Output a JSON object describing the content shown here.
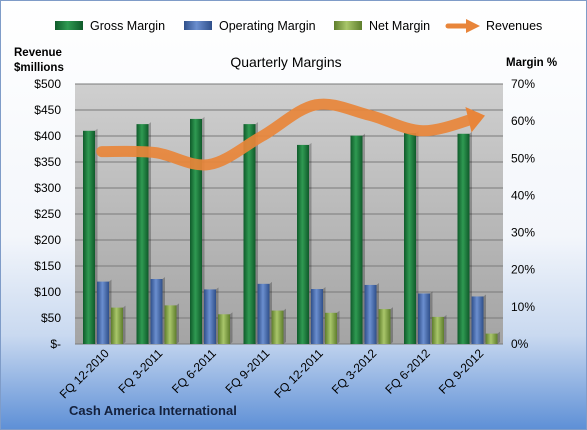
{
  "colors": {
    "gross_margin": "#1e7a3c",
    "operating_margin": "#4a6fb0",
    "net_margin": "#8cab4e",
    "revenues": "#e8853a"
  },
  "chart_data": {
    "type": "bar",
    "title": "Quarterly Margins",
    "footer": "Cash America International",
    "y_left_label": [
      "Revenue",
      "$millions"
    ],
    "y_right_label": "Margin %",
    "y_left_range": [
      0,
      500
    ],
    "y_left_ticks": [
      "$-",
      "$50",
      "$100",
      "$150",
      "$200",
      "$250",
      "$300",
      "$350",
      "$400",
      "$450",
      "$500"
    ],
    "y_right_range": [
      0,
      70
    ],
    "y_right_ticks": [
      "0%",
      "10%",
      "20%",
      "30%",
      "40%",
      "50%",
      "60%",
      "70%"
    ],
    "grid": "horizontal",
    "legend_position": "top",
    "categories": [
      "FQ 12-2010",
      "FQ 3-2011",
      "FQ 6-2011",
      "FQ 9-2011",
      "FQ 12-2011",
      "FQ 3-2012",
      "FQ 6-2012",
      "FQ 9-2012"
    ],
    "series": [
      {
        "name": "Gross Margin",
        "axis": "right",
        "kind": "bar",
        "values": [
          57.4,
          59.2,
          60.6,
          59.2,
          53.6,
          56.1,
          56.8,
          56.6
        ]
      },
      {
        "name": "Operating Margin",
        "axis": "right",
        "kind": "bar",
        "values": [
          16.8,
          17.5,
          14.7,
          16.2,
          14.8,
          15.9,
          13.6,
          12.8
        ]
      },
      {
        "name": "Net Margin",
        "axis": "right",
        "kind": "bar",
        "values": [
          9.8,
          10.4,
          8.0,
          9.0,
          8.4,
          9.4,
          7.3,
          2.8
        ]
      },
      {
        "name": "Revenues",
        "axis": "left",
        "kind": "line",
        "values": [
          370,
          368,
          345,
          400,
          460,
          440,
          410,
          435
        ]
      }
    ]
  }
}
